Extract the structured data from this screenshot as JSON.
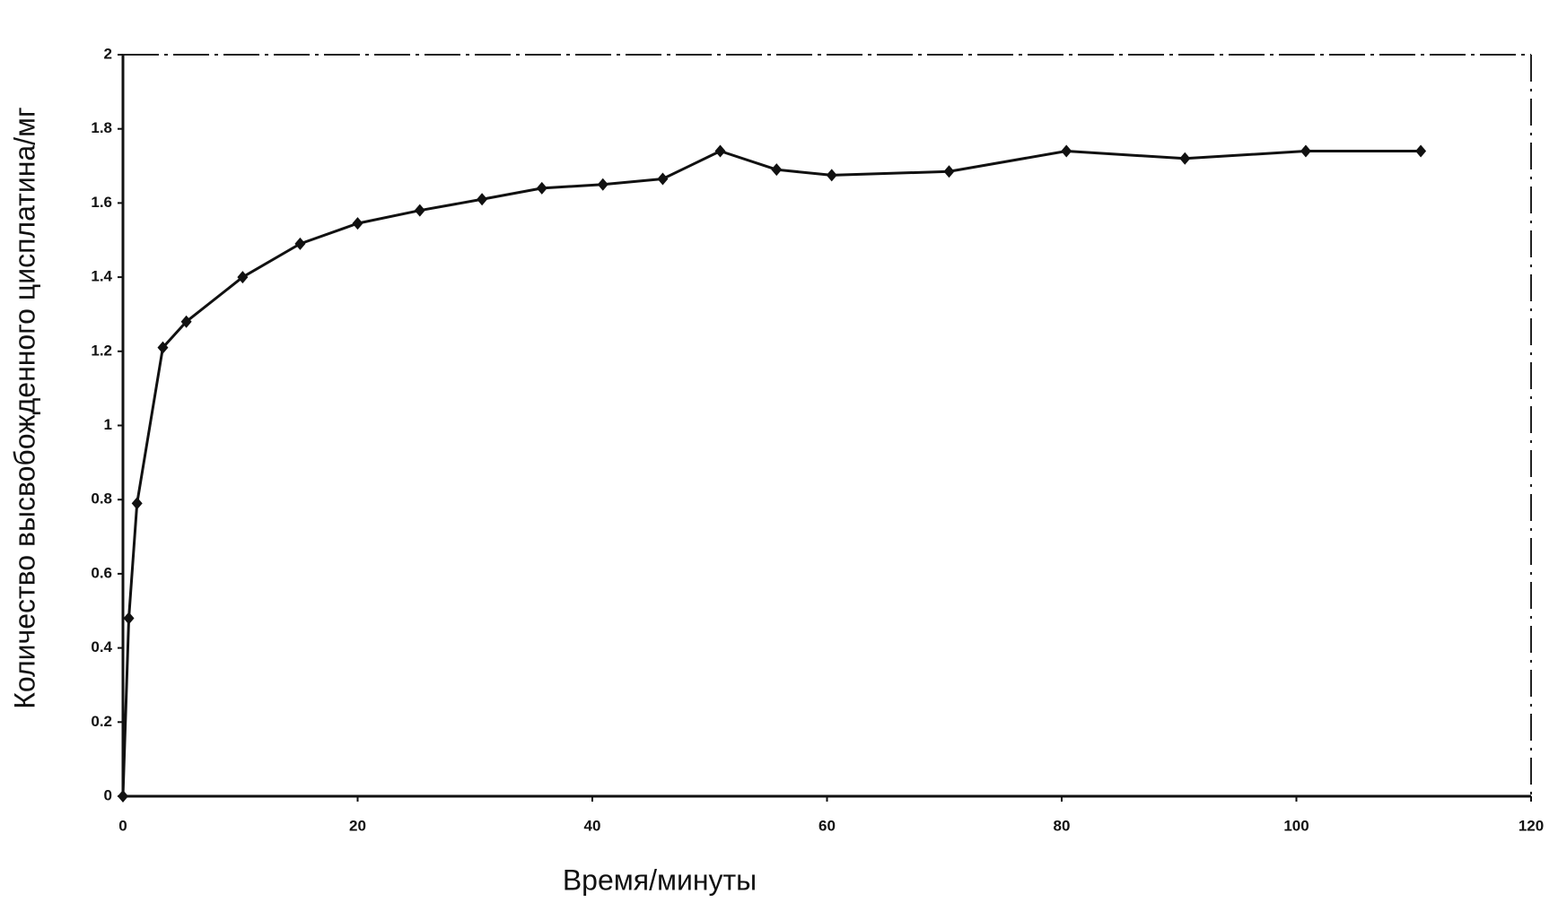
{
  "chart_data": {
    "type": "line",
    "xlabel": "Время/минуты",
    "ylabel": "Количество высвобожденного цисплатина/мг",
    "x": [
      0,
      0.5,
      1.2,
      3.4,
      5.4,
      10.2,
      15.1,
      20,
      25.3,
      30.6,
      35.7,
      40.9,
      46,
      50.9,
      55.7,
      60.4,
      70.4,
      80.4,
      90.5,
      100.8,
      110.6
    ],
    "series": [
      {
        "color": "#111111",
        "values": [
          0,
          0.48,
          0.79,
          1.21,
          1.28,
          1.4,
          1.49,
          1.545,
          1.58,
          1.61,
          1.64,
          1.65,
          1.665,
          1.74,
          1.69,
          1.675,
          1.685,
          1.74,
          1.72,
          1.74,
          1.74
        ]
      }
    ],
    "xlim": [
      0,
      120
    ],
    "xticks": [
      0,
      20,
      40,
      60,
      80,
      100,
      120
    ],
    "ylim": [
      0,
      2
    ],
    "yticks": [
      0,
      0.2,
      0.4,
      0.6,
      0.8,
      1,
      1.2,
      1.4,
      1.6,
      1.8,
      2
    ],
    "grid": false
  }
}
